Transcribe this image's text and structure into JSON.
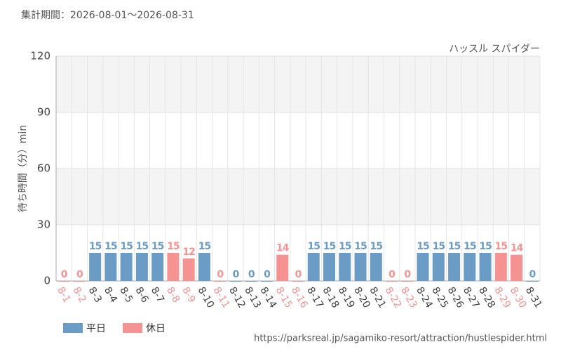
{
  "chart_data": {
    "type": "bar",
    "period": "集計期間：2026-08-01～2026-08-31",
    "title": "ハッスル スパイダー",
    "y_label": "待ち時間（分）min",
    "source": "https://parksreal.jp/sagamiko-resort/attraction/hustlespider.html",
    "categories": [
      "8-1",
      "8-2",
      "8-3",
      "8-4",
      "8-5",
      "8-6",
      "8-7",
      "8-8",
      "8-9",
      "8-10",
      "8-11",
      "8-12",
      "8-13",
      "8-14",
      "8-15",
      "8-16",
      "8-17",
      "8-18",
      "8-19",
      "8-20",
      "8-21",
      "8-22",
      "8-23",
      "8-24",
      "8-25",
      "8-26",
      "8-27",
      "8-28",
      "8-29",
      "8-30",
      "8-31"
    ],
    "series": [
      {
        "name": "平日",
        "color": "#6a9cc6",
        "values": [
          null,
          null,
          15,
          15,
          15,
          15,
          15,
          null,
          null,
          15,
          null,
          0,
          0,
          0,
          null,
          null,
          15,
          15,
          15,
          15,
          15,
          null,
          null,
          15,
          15,
          15,
          15,
          15,
          null,
          null,
          0
        ]
      },
      {
        "name": "休日",
        "color": "#f59393",
        "values": [
          0,
          0,
          null,
          null,
          null,
          null,
          null,
          15,
          12,
          null,
          0,
          null,
          null,
          null,
          14,
          0,
          null,
          null,
          null,
          null,
          null,
          0,
          0,
          null,
          null,
          null,
          null,
          null,
          15,
          14,
          null
        ]
      }
    ],
    "ylim": [
      0,
      120
    ],
    "yticks": [
      0,
      30,
      60,
      90,
      120
    ],
    "grid": true
  }
}
